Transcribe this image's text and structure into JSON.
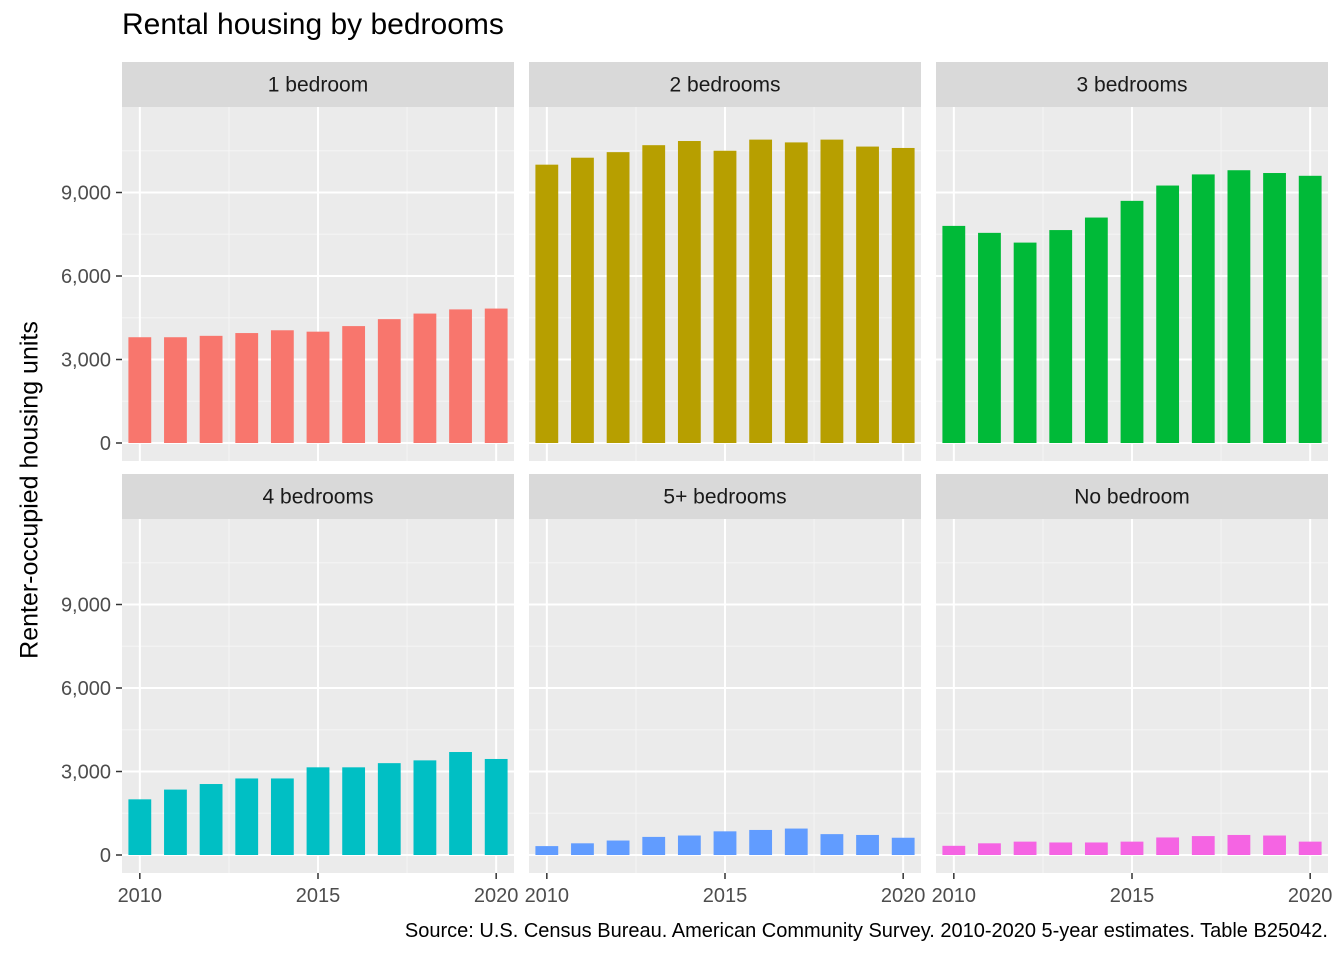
{
  "chart_data": {
    "type": "bar",
    "title": "Rental housing by bedrooms",
    "ylabel": "Renter-occupied housing units",
    "xlabel": "",
    "caption": "Source: U.S. Census Bureau. American Community Survey. 2010-2020 5-year estimates. Table B25042.",
    "x": [
      2010,
      2011,
      2012,
      2013,
      2014,
      2015,
      2016,
      2017,
      2018,
      2019,
      2020
    ],
    "x_ticks": [
      "2010",
      "2015",
      "2020"
    ],
    "y_ticks": [
      "0",
      "3,000",
      "6,000",
      "9,000"
    ],
    "ylim": [
      0,
      12000
    ],
    "grid": true,
    "legend": "none",
    "facets": [
      {
        "name": "1 bedroom",
        "color": "#F8766D",
        "values": [
          3800,
          3800,
          3850,
          3950,
          4050,
          4000,
          4200,
          4450,
          4650,
          4800,
          4830
        ]
      },
      {
        "name": "2 bedrooms",
        "color": "#B79F00",
        "values": [
          10000,
          10250,
          10450,
          10700,
          10850,
          10500,
          10900,
          10800,
          10900,
          10650,
          10600
        ]
      },
      {
        "name": "3 bedrooms",
        "color": "#00BA38",
        "values": [
          7800,
          7550,
          7200,
          7650,
          8100,
          8700,
          9250,
          9650,
          9800,
          9700,
          9600
        ]
      },
      {
        "name": "4 bedrooms",
        "color": "#00BFC4",
        "values": [
          2000,
          2350,
          2550,
          2750,
          2750,
          3150,
          3150,
          3300,
          3400,
          3700,
          3450
        ]
      },
      {
        "name": "5+ bedrooms",
        "color": "#619CFF",
        "values": [
          320,
          420,
          520,
          650,
          700,
          850,
          900,
          950,
          750,
          720,
          620
        ]
      },
      {
        "name": "No bedroom",
        "color": "#F564E3",
        "values": [
          330,
          420,
          480,
          450,
          450,
          480,
          630,
          680,
          720,
          700,
          480
        ]
      }
    ]
  }
}
